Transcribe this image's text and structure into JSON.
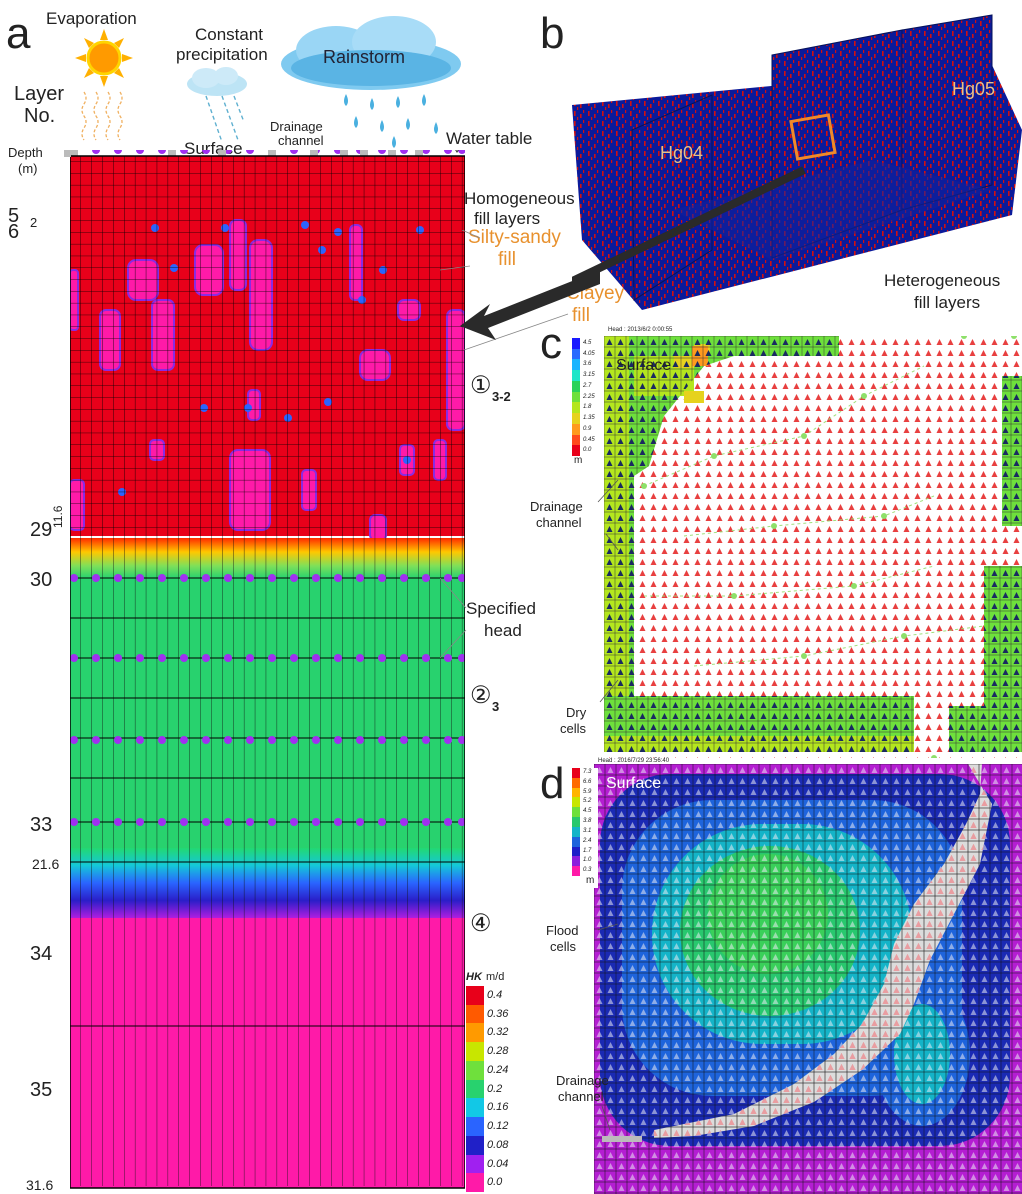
{
  "panels": {
    "a": "a",
    "b": "b",
    "c": "c",
    "d": "d"
  },
  "panel_a": {
    "weather": {
      "evaporation": "Evaporation",
      "precip_line1": "Constant",
      "precip_line2": "precipitation",
      "rainstorm": "Rainstorm"
    },
    "layer_no_line1": "Layer",
    "layer_no_line2": "No.",
    "depth_line1": "Depth",
    "depth_line2": "(m)",
    "surface": "Surface",
    "drainage_line1": "Drainage",
    "drainage_line2": "channel",
    "water_table": "Water table",
    "homog_line1": "Homogeneous",
    "homog_line2": "fill layers",
    "silty_line1": "Silty-sandy",
    "silty_line2": "fill",
    "clayey_line1": "Clayey",
    "clayey_line2": "fill",
    "specified_line1": "Specified",
    "specified_line2": "head",
    "layer_codes": {
      "l1": "①",
      "l1_sub": "3-2",
      "l2": "②",
      "l2_sub": "3",
      "l4": "④"
    },
    "layer_numbers": [
      "5",
      "6",
      "29",
      "30",
      "33",
      "34",
      "35"
    ],
    "depths": [
      "2",
      "11.6",
      "21.6",
      "31.6"
    ],
    "hk_legend": {
      "title": "HK",
      "unit": "m/d",
      "values": [
        "0.4",
        "0.36",
        "0.32",
        "0.28",
        "0.24",
        "0.2",
        "0.16",
        "0.12",
        "0.08",
        "0.04",
        "0.0"
      ],
      "colors": [
        "#e8001a",
        "#ff5a00",
        "#ff9a00",
        "#c8e600",
        "#6fe03c",
        "#28d26e",
        "#12c8e6",
        "#2a64ff",
        "#2020c8",
        "#a020f0",
        "#ff1aa8"
      ]
    }
  },
  "panel_b": {
    "hg04": "Hg04",
    "hg05": "Hg05",
    "hetero_line1": "Heterogeneous",
    "hetero_line2": "fill layers"
  },
  "panel_c": {
    "header": "Head : 2013/6/2 0:00:55",
    "surface": "Surface",
    "drainage_line1": "Drainage",
    "drainage_line2": "channel",
    "dry_line1": "Dry",
    "dry_line2": "cells",
    "legend_values": [
      "4.5",
      "4.05",
      "3.6",
      "3.15",
      "2.7",
      "2.25",
      "1.8",
      "1.35",
      "0.9",
      "0.45",
      "0.0"
    ],
    "legend_unit": "m",
    "legend_colors": [
      "#1a1aff",
      "#2a6aff",
      "#1ab4ff",
      "#1ee6c8",
      "#2ad25a",
      "#6ee03c",
      "#b4e61e",
      "#e6d21e",
      "#ff9a1e",
      "#ff4a1e",
      "#e8001a"
    ]
  },
  "panel_d": {
    "header": "Head : 2016/7/29 23:56:40",
    "surface": "Surface",
    "flood_line1": "Flood",
    "flood_line2": "cells",
    "drainage_line1": "Drainage",
    "drainage_line2": "channel",
    "legend_values": [
      "7.3",
      "6.6",
      "5.9",
      "5.2",
      "4.5",
      "3.8",
      "3.1",
      "2.4",
      "1.7",
      "1.0",
      "0.3"
    ],
    "legend_unit": "m",
    "legend_colors": [
      "#e8001a",
      "#ff6a00",
      "#ffb400",
      "#c8e600",
      "#6ee03c",
      "#28c86e",
      "#14b4c8",
      "#1e64dc",
      "#1e1ec8",
      "#8c1edc",
      "#ff1aa8"
    ]
  }
}
